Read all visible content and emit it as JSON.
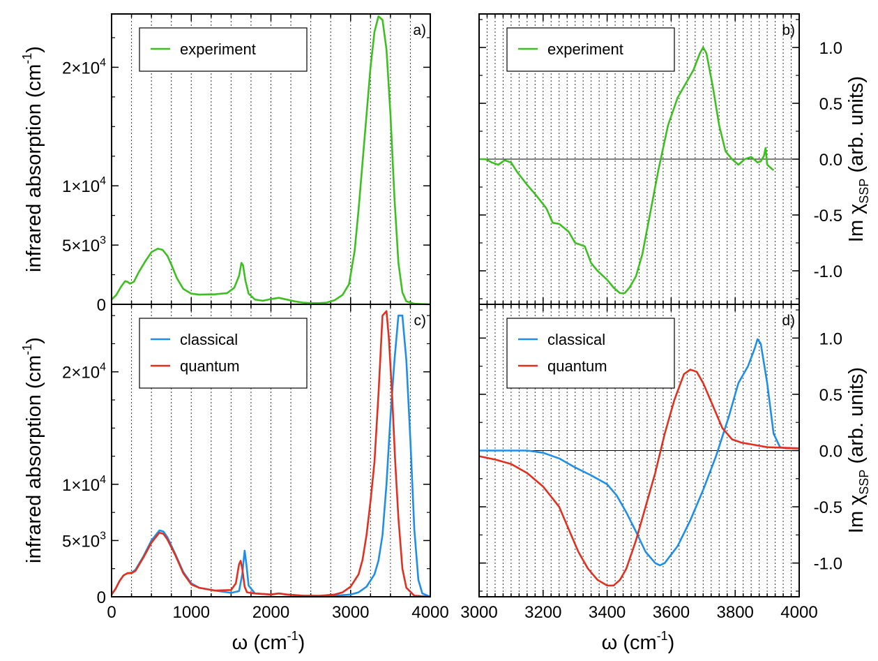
{
  "chart_data": [
    {
      "id": "a",
      "type": "line",
      "panel_label": "a)",
      "xlim": [
        0,
        4000
      ],
      "ylim": [
        0,
        24500
      ],
      "xticks": [
        0,
        1000,
        2000,
        3000,
        4000
      ],
      "yticks": [
        {
          "value": 0,
          "label": "0"
        },
        {
          "value": 5000,
          "label": "5×10"
        },
        {
          "value": 10000,
          "label": "1×10"
        },
        {
          "value": 20000,
          "label": "2×10"
        }
      ],
      "ytick_exponent": "3|4|4",
      "ylabel": "infrared absorption (cm",
      "ylabel_sup": "-1",
      "ylabel_end": ")",
      "legend_position": "top-left",
      "grid": "vertical dotted every 250",
      "series": [
        {
          "name": "experiment",
          "color": "#3cc020",
          "x": [
            0,
            60,
            120,
            170,
            200,
            230,
            280,
            340,
            420,
            500,
            580,
            640,
            700,
            760,
            820,
            900,
            1000,
            1100,
            1300,
            1450,
            1540,
            1600,
            1630,
            1650,
            1680,
            1720,
            1800,
            1900,
            2000,
            2100,
            2200,
            2300,
            2400,
            2500,
            2600,
            2700,
            2800,
            2900,
            2980,
            3050,
            3100,
            3150,
            3200,
            3250,
            3300,
            3350,
            3400,
            3450,
            3500,
            3550,
            3600,
            3650,
            3700,
            3800,
            3900,
            4000
          ],
          "y": [
            400,
            800,
            1500,
            1950,
            1900,
            1750,
            1900,
            2700,
            3600,
            4400,
            4700,
            4600,
            4100,
            3200,
            2200,
            1300,
            900,
            820,
            850,
            950,
            1400,
            2400,
            3500,
            3300,
            2000,
            900,
            400,
            300,
            450,
            550,
            400,
            250,
            150,
            100,
            100,
            150,
            350,
            800,
            1700,
            4500,
            8000,
            12000,
            16000,
            20000,
            23000,
            24300,
            24000,
            21500,
            16000,
            9000,
            3500,
            1000,
            250,
            50,
            20,
            0
          ]
        }
      ]
    },
    {
      "id": "b",
      "type": "line",
      "panel_label": "b)",
      "xlim": [
        3000,
        4000
      ],
      "ylim": [
        -1.3,
        1.3
      ],
      "xticks": [
        3000,
        3200,
        3400,
        3600,
        3800,
        4000
      ],
      "yticks": [
        {
          "value": 1.0,
          "label": "1.0"
        },
        {
          "value": 0.5,
          "label": "0.5"
        },
        {
          "value": 0.0,
          "label": "0.0"
        },
        {
          "value": -0.5,
          "label": "-0.5"
        },
        {
          "value": -1.0,
          "label": "-1.0"
        }
      ],
      "ylabel": "Im χ",
      "ylabel_sub": "SSP",
      "ylabel_end": "(arb. units)",
      "legend_position": "top-left",
      "grid": "vertical dotted every 25",
      "series": [
        {
          "name": "experiment",
          "color": "#3cc020",
          "x": [
            3000,
            3020,
            3040,
            3060,
            3080,
            3100,
            3120,
            3150,
            3180,
            3210,
            3230,
            3250,
            3280,
            3300,
            3330,
            3350,
            3370,
            3400,
            3420,
            3440,
            3455,
            3470,
            3490,
            3510,
            3530,
            3560,
            3590,
            3620,
            3650,
            3670,
            3690,
            3700,
            3710,
            3730,
            3750,
            3770,
            3790,
            3810,
            3830,
            3850,
            3870,
            3880,
            3890,
            3895,
            3900,
            3920
          ],
          "y": [
            0.0,
            0.0,
            -0.03,
            -0.05,
            -0.01,
            -0.03,
            -0.12,
            -0.23,
            -0.33,
            -0.44,
            -0.57,
            -0.58,
            -0.65,
            -0.75,
            -0.78,
            -0.93,
            -1.0,
            -1.08,
            -1.15,
            -1.2,
            -1.2,
            -1.15,
            -1.05,
            -0.85,
            -0.55,
            -0.1,
            0.3,
            0.55,
            0.7,
            0.8,
            0.95,
            1.0,
            0.95,
            0.65,
            0.3,
            0.07,
            0.0,
            -0.05,
            0.0,
            0.02,
            -0.03,
            -0.02,
            0.03,
            0.1,
            -0.05,
            -0.1
          ]
        }
      ]
    },
    {
      "id": "c",
      "type": "line",
      "panel_label": "c)",
      "xlim": [
        0,
        4000
      ],
      "ylim": [
        0,
        26000
      ],
      "xticks": [
        0,
        1000,
        2000,
        3000,
        4000
      ],
      "yticks": [
        {
          "value": 0,
          "label": "0"
        },
        {
          "value": 5000,
          "label": "5×10"
        },
        {
          "value": 10000,
          "label": "1×10"
        },
        {
          "value": 20000,
          "label": "2×10"
        }
      ],
      "ytick_exponent": "3|4|4",
      "xlabel": "ω (cm",
      "xlabel_sup": "-1",
      "xlabel_end": ")",
      "ylabel": "infrared absorption (cm",
      "ylabel_sup": "-1",
      "ylabel_end": ")",
      "legend_position": "top-left",
      "grid": "vertical dotted every 250",
      "series": [
        {
          "name": "classical",
          "color": "#1e8ee8",
          "x": [
            0,
            50,
            100,
            150,
            200,
            250,
            300,
            400,
            500,
            600,
            650,
            700,
            800,
            900,
            1000,
            1100,
            1300,
            1500,
            1600,
            1640,
            1670,
            1690,
            1720,
            1800,
            2000,
            2100,
            2200,
            2400,
            2600,
            2800,
            3000,
            3100,
            3200,
            3300,
            3350,
            3400,
            3450,
            3500,
            3550,
            3600,
            3650,
            3700,
            3750,
            3800,
            3850,
            3900,
            4000
          ],
          "y": [
            200,
            700,
            1400,
            1900,
            2100,
            2150,
            2400,
            3600,
            5000,
            5900,
            5800,
            5300,
            3800,
            2200,
            1200,
            800,
            550,
            350,
            500,
            2000,
            4100,
            3000,
            1000,
            300,
            200,
            300,
            200,
            100,
            80,
            100,
            200,
            400,
            900,
            2000,
            3200,
            5500,
            10000,
            16000,
            21000,
            25000,
            25000,
            21000,
            14000,
            6000,
            1500,
            300,
            0
          ]
        },
        {
          "name": "quantum",
          "color": "#e23020",
          "x": [
            0,
            50,
            100,
            150,
            200,
            250,
            300,
            400,
            500,
            600,
            650,
            700,
            800,
            900,
            1000,
            1100,
            1300,
            1500,
            1560,
            1600,
            1620,
            1640,
            1670,
            1700,
            1800,
            2000,
            2100,
            2200,
            2400,
            2600,
            2800,
            2900,
            3000,
            3100,
            3150,
            3200,
            3250,
            3300,
            3350,
            3400,
            3450,
            3480,
            3520,
            3560,
            3600,
            3650,
            3700,
            3800,
            4000
          ],
          "y": [
            200,
            700,
            1400,
            1900,
            2100,
            2100,
            2300,
            3500,
            4800,
            5700,
            5600,
            5100,
            3700,
            2100,
            1100,
            800,
            550,
            600,
            1200,
            2900,
            3200,
            2500,
            900,
            400,
            300,
            200,
            300,
            200,
            100,
            80,
            200,
            400,
            900,
            2000,
            3300,
            5500,
            8500,
            12000,
            18000,
            25000,
            25400,
            23000,
            18000,
            12000,
            7000,
            2500,
            800,
            100,
            0
          ]
        }
      ]
    },
    {
      "id": "d",
      "type": "line",
      "panel_label": "d)",
      "xlim": [
        3000,
        4000
      ],
      "ylim": [
        -1.3,
        1.3
      ],
      "xticks": [
        3000,
        3200,
        3400,
        3600,
        3800,
        4000
      ],
      "yticks": [
        {
          "value": 1.0,
          "label": "1.0"
        },
        {
          "value": 0.5,
          "label": "0.5"
        },
        {
          "value": 0.0,
          "label": "0.0"
        },
        {
          "value": -0.5,
          "label": "-0.5"
        },
        {
          "value": -1.0,
          "label": "-1.0"
        }
      ],
      "xlabel": "ω (cm",
      "xlabel_sup": "-1",
      "xlabel_end": ")",
      "ylabel": "Im χ",
      "ylabel_sub": "SSP",
      "ylabel_end": "(arb. units)",
      "legend_position": "top-left",
      "grid": "vertical dotted every 25",
      "series": [
        {
          "name": "classical",
          "color": "#1e8ee8",
          "x": [
            3000,
            3050,
            3100,
            3150,
            3200,
            3250,
            3300,
            3350,
            3400,
            3430,
            3460,
            3490,
            3520,
            3550,
            3565,
            3580,
            3620,
            3660,
            3700,
            3740,
            3780,
            3810,
            3840,
            3860,
            3870,
            3880,
            3900,
            3920,
            3940,
            3960,
            4000
          ],
          "y": [
            0.0,
            0.0,
            0.0,
            0.0,
            -0.02,
            -0.07,
            -0.15,
            -0.22,
            -0.3,
            -0.4,
            -0.55,
            -0.72,
            -0.9,
            -1.0,
            -1.02,
            -1.0,
            -0.85,
            -0.62,
            -0.35,
            -0.05,
            0.3,
            0.6,
            0.75,
            0.9,
            0.99,
            0.95,
            0.6,
            0.15,
            0.03,
            0.02,
            0.02
          ]
        },
        {
          "name": "quantum",
          "color": "#e23020",
          "x": [
            3000,
            3050,
            3100,
            3150,
            3200,
            3250,
            3280,
            3310,
            3340,
            3370,
            3400,
            3420,
            3440,
            3460,
            3490,
            3520,
            3550,
            3580,
            3610,
            3640,
            3660,
            3680,
            3700,
            3730,
            3760,
            3790,
            3820,
            3860,
            3900,
            4000
          ],
          "y": [
            -0.05,
            -0.08,
            -0.12,
            -0.2,
            -0.32,
            -0.5,
            -0.7,
            -0.9,
            -1.05,
            -1.15,
            -1.2,
            -1.2,
            -1.15,
            -1.05,
            -0.8,
            -0.5,
            -0.2,
            0.15,
            0.45,
            0.68,
            0.72,
            0.7,
            0.6,
            0.4,
            0.2,
            0.1,
            0.07,
            0.05,
            0.03,
            0.02
          ]
        }
      ]
    }
  ]
}
